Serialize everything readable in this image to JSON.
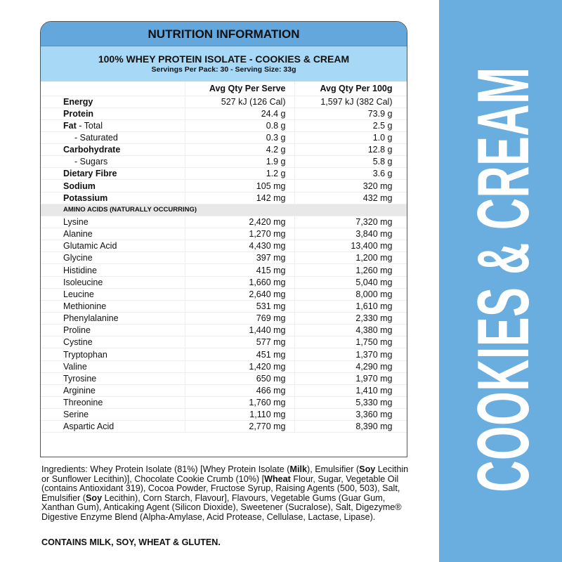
{
  "title": "NUTRITION INFORMATION",
  "product": "100% WHEY PROTEIN ISOLATE - COOKIES & CREAM",
  "servings": "Servings Per Pack: 30 - Serving Size: 33g",
  "side_label": "COOKIES & CREAM",
  "colors": {
    "header": "#63a7dd",
    "subheader": "#a7d8f5",
    "side": "#6aaee0"
  },
  "columns": [
    "",
    "Avg Qty Per Serve",
    "Avg Qty Per 100g"
  ],
  "nutrients": [
    {
      "name": "Energy",
      "bold": true,
      "serve": "527 kJ (126 Cal)",
      "per100": "1,597 kJ (382 Cal)"
    },
    {
      "name": "Protein",
      "bold": true,
      "serve": "24.4 g",
      "per100": "73.9 g"
    },
    {
      "name": "Fat",
      "suffix": " - Total",
      "bold": true,
      "serve": "0.8 g",
      "per100": "2.5 g"
    },
    {
      "name": "- Saturated",
      "bold": false,
      "serve": "0.3 g",
      "per100": "1.0 g"
    },
    {
      "name": "Carbohydrate",
      "bold": true,
      "serve": "4.2 g",
      "per100": "12.8 g"
    },
    {
      "name": "- Sugars",
      "bold": false,
      "serve": "1.9 g",
      "per100": "5.8 g"
    },
    {
      "name": "Dietary Fibre",
      "bold": true,
      "serve": "1.2 g",
      "per100": "3.6 g"
    },
    {
      "name": "Sodium",
      "bold": true,
      "serve": "105 mg",
      "per100": "320 mg"
    },
    {
      "name": "Potassium",
      "bold": true,
      "serve": "142 mg",
      "per100": "432 mg"
    }
  ],
  "amino_header": "AMINO ACIDS (NATURALLY OCCURRING)",
  "amino": [
    {
      "name": "Lysine",
      "serve": "2,420 mg",
      "per100": "7,320 mg"
    },
    {
      "name": "Alanine",
      "serve": "1,270 mg",
      "per100": "3,840 mg"
    },
    {
      "name": "Glutamic Acid",
      "serve": "4,430 mg",
      "per100": "13,400 mg"
    },
    {
      "name": "Glycine",
      "serve": "397 mg",
      "per100": "1,200 mg"
    },
    {
      "name": "Histidine",
      "serve": "415 mg",
      "per100": "1,260 mg"
    },
    {
      "name": "Isoleucine",
      "serve": "1,660 mg",
      "per100": "5,040 mg"
    },
    {
      "name": "Leucine",
      "serve": "2,640 mg",
      "per100": "8,000 mg"
    },
    {
      "name": "Methionine",
      "serve": "531 mg",
      "per100": "1,610 mg"
    },
    {
      "name": "Phenylalanine",
      "serve": "769 mg",
      "per100": "2,330 mg"
    },
    {
      "name": "Proline",
      "serve": "1,440 mg",
      "per100": "4,380 mg"
    },
    {
      "name": "Cystine",
      "serve": "577 mg",
      "per100": "1,750 mg"
    },
    {
      "name": "Tryptophan",
      "serve": "451 mg",
      "per100": "1,370 mg"
    },
    {
      "name": "Valine",
      "serve": "1,420 mg",
      "per100": "4,290 mg"
    },
    {
      "name": "Tyrosine",
      "serve": "650 mg",
      "per100": "1,970 mg"
    },
    {
      "name": "Arginine",
      "serve": "466 mg",
      "per100": "1,410 mg"
    },
    {
      "name": "Threonine",
      "serve": "1,760 mg",
      "per100": "5,330 mg"
    },
    {
      "name": "Serine",
      "serve": "1,110 mg",
      "per100": "3,360 mg"
    },
    {
      "name": "Aspartic Acid",
      "serve": "2,770 mg",
      "per100": "8,390 mg"
    }
  ],
  "ingredients": [
    {
      "text": "Ingredients: Whey Protein Isolate (81%) [Whey Protein Isolate (",
      "bold": false
    },
    {
      "text": "Milk",
      "bold": true
    },
    {
      "text": "), Emulsifier (",
      "bold": false
    },
    {
      "text": "Soy",
      "bold": true
    },
    {
      "text": " Lecithin or Sunflower Lecithin)], Chocolate Cookie Crumb (10%) [",
      "bold": false
    },
    {
      "text": "Wheat",
      "bold": true
    },
    {
      "text": " Flour, Sugar, Vegetable Oil (contains Antioxidant 319), Cocoa Powder, Fructose Syrup, Raising Agents (500, 503), Salt, Emulsifier (",
      "bold": false
    },
    {
      "text": "Soy",
      "bold": true
    },
    {
      "text": " Lecithin), Corn Starch, Flavour], Flavours, Vegetable Gums (Guar Gum, Xanthan Gum),  Anticaking Agent (Silicon Dioxide), Sweetener (Sucralose), Salt, Digezyme® Digestive Enzyme Blend (Alpha-Amylase, Acid Protease, Cellulase, Lactase, Lipase).",
      "bold": false
    }
  ],
  "contains": "CONTAINS MILK, SOY, WHEAT & GLUTEN."
}
